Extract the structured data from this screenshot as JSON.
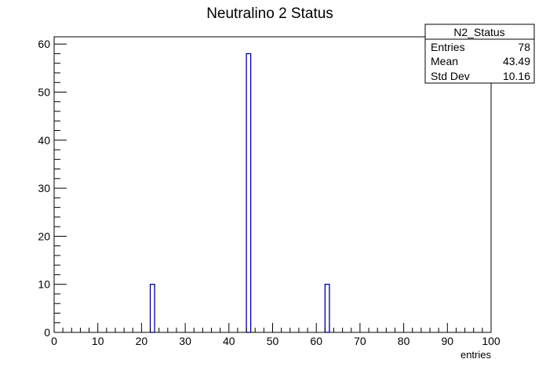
{
  "chart_data": {
    "type": "bar",
    "title": "Neutralino 2 Status",
    "xlabel": "entries",
    "ylabel": "",
    "xlim": [
      0,
      100
    ],
    "ylim": [
      0,
      61.5
    ],
    "x_ticks": [
      0,
      10,
      20,
      30,
      40,
      50,
      60,
      70,
      80,
      90,
      100
    ],
    "y_ticks": [
      0,
      10,
      20,
      30,
      40,
      50,
      60
    ],
    "bin_width": 1,
    "bars": [
      {
        "x_low": 22,
        "x_high": 23,
        "value": 10
      },
      {
        "x_low": 44,
        "x_high": 45,
        "value": 58
      },
      {
        "x_low": 62,
        "x_high": 63,
        "value": 10
      }
    ],
    "bar_color": "#000099",
    "stats_box": {
      "name": "N2_Status",
      "rows": [
        {
          "label": "Entries",
          "value": "78"
        },
        {
          "label": "Mean",
          "value": "43.49"
        },
        {
          "label": "Std Dev",
          "value": "10.16"
        }
      ]
    }
  }
}
